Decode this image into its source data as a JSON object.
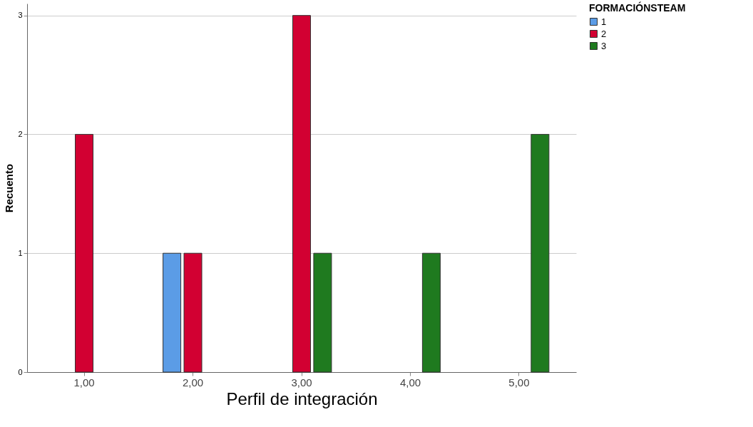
{
  "chart_data": {
    "type": "bar",
    "xlabel": "Perfil de integración",
    "ylabel": "Recuento",
    "legend_title": "FORMACIÓNSTEAM",
    "categories": [
      "1,00",
      "2,00",
      "3,00",
      "4,00",
      "5,00"
    ],
    "series": [
      {
        "name": "1",
        "color": "#5b9ce6",
        "values": [
          null,
          1,
          null,
          null,
          null
        ]
      },
      {
        "name": "2",
        "color": "#d20032",
        "values": [
          2,
          1,
          3,
          null,
          null
        ]
      },
      {
        "name": "3",
        "color": "#1f7a1f",
        "values": [
          null,
          null,
          1,
          1,
          2
        ]
      }
    ],
    "ylim": [
      0,
      3.1
    ],
    "yticks": [
      0,
      1,
      2,
      3
    ],
    "grid": "y",
    "legend": "top right"
  }
}
